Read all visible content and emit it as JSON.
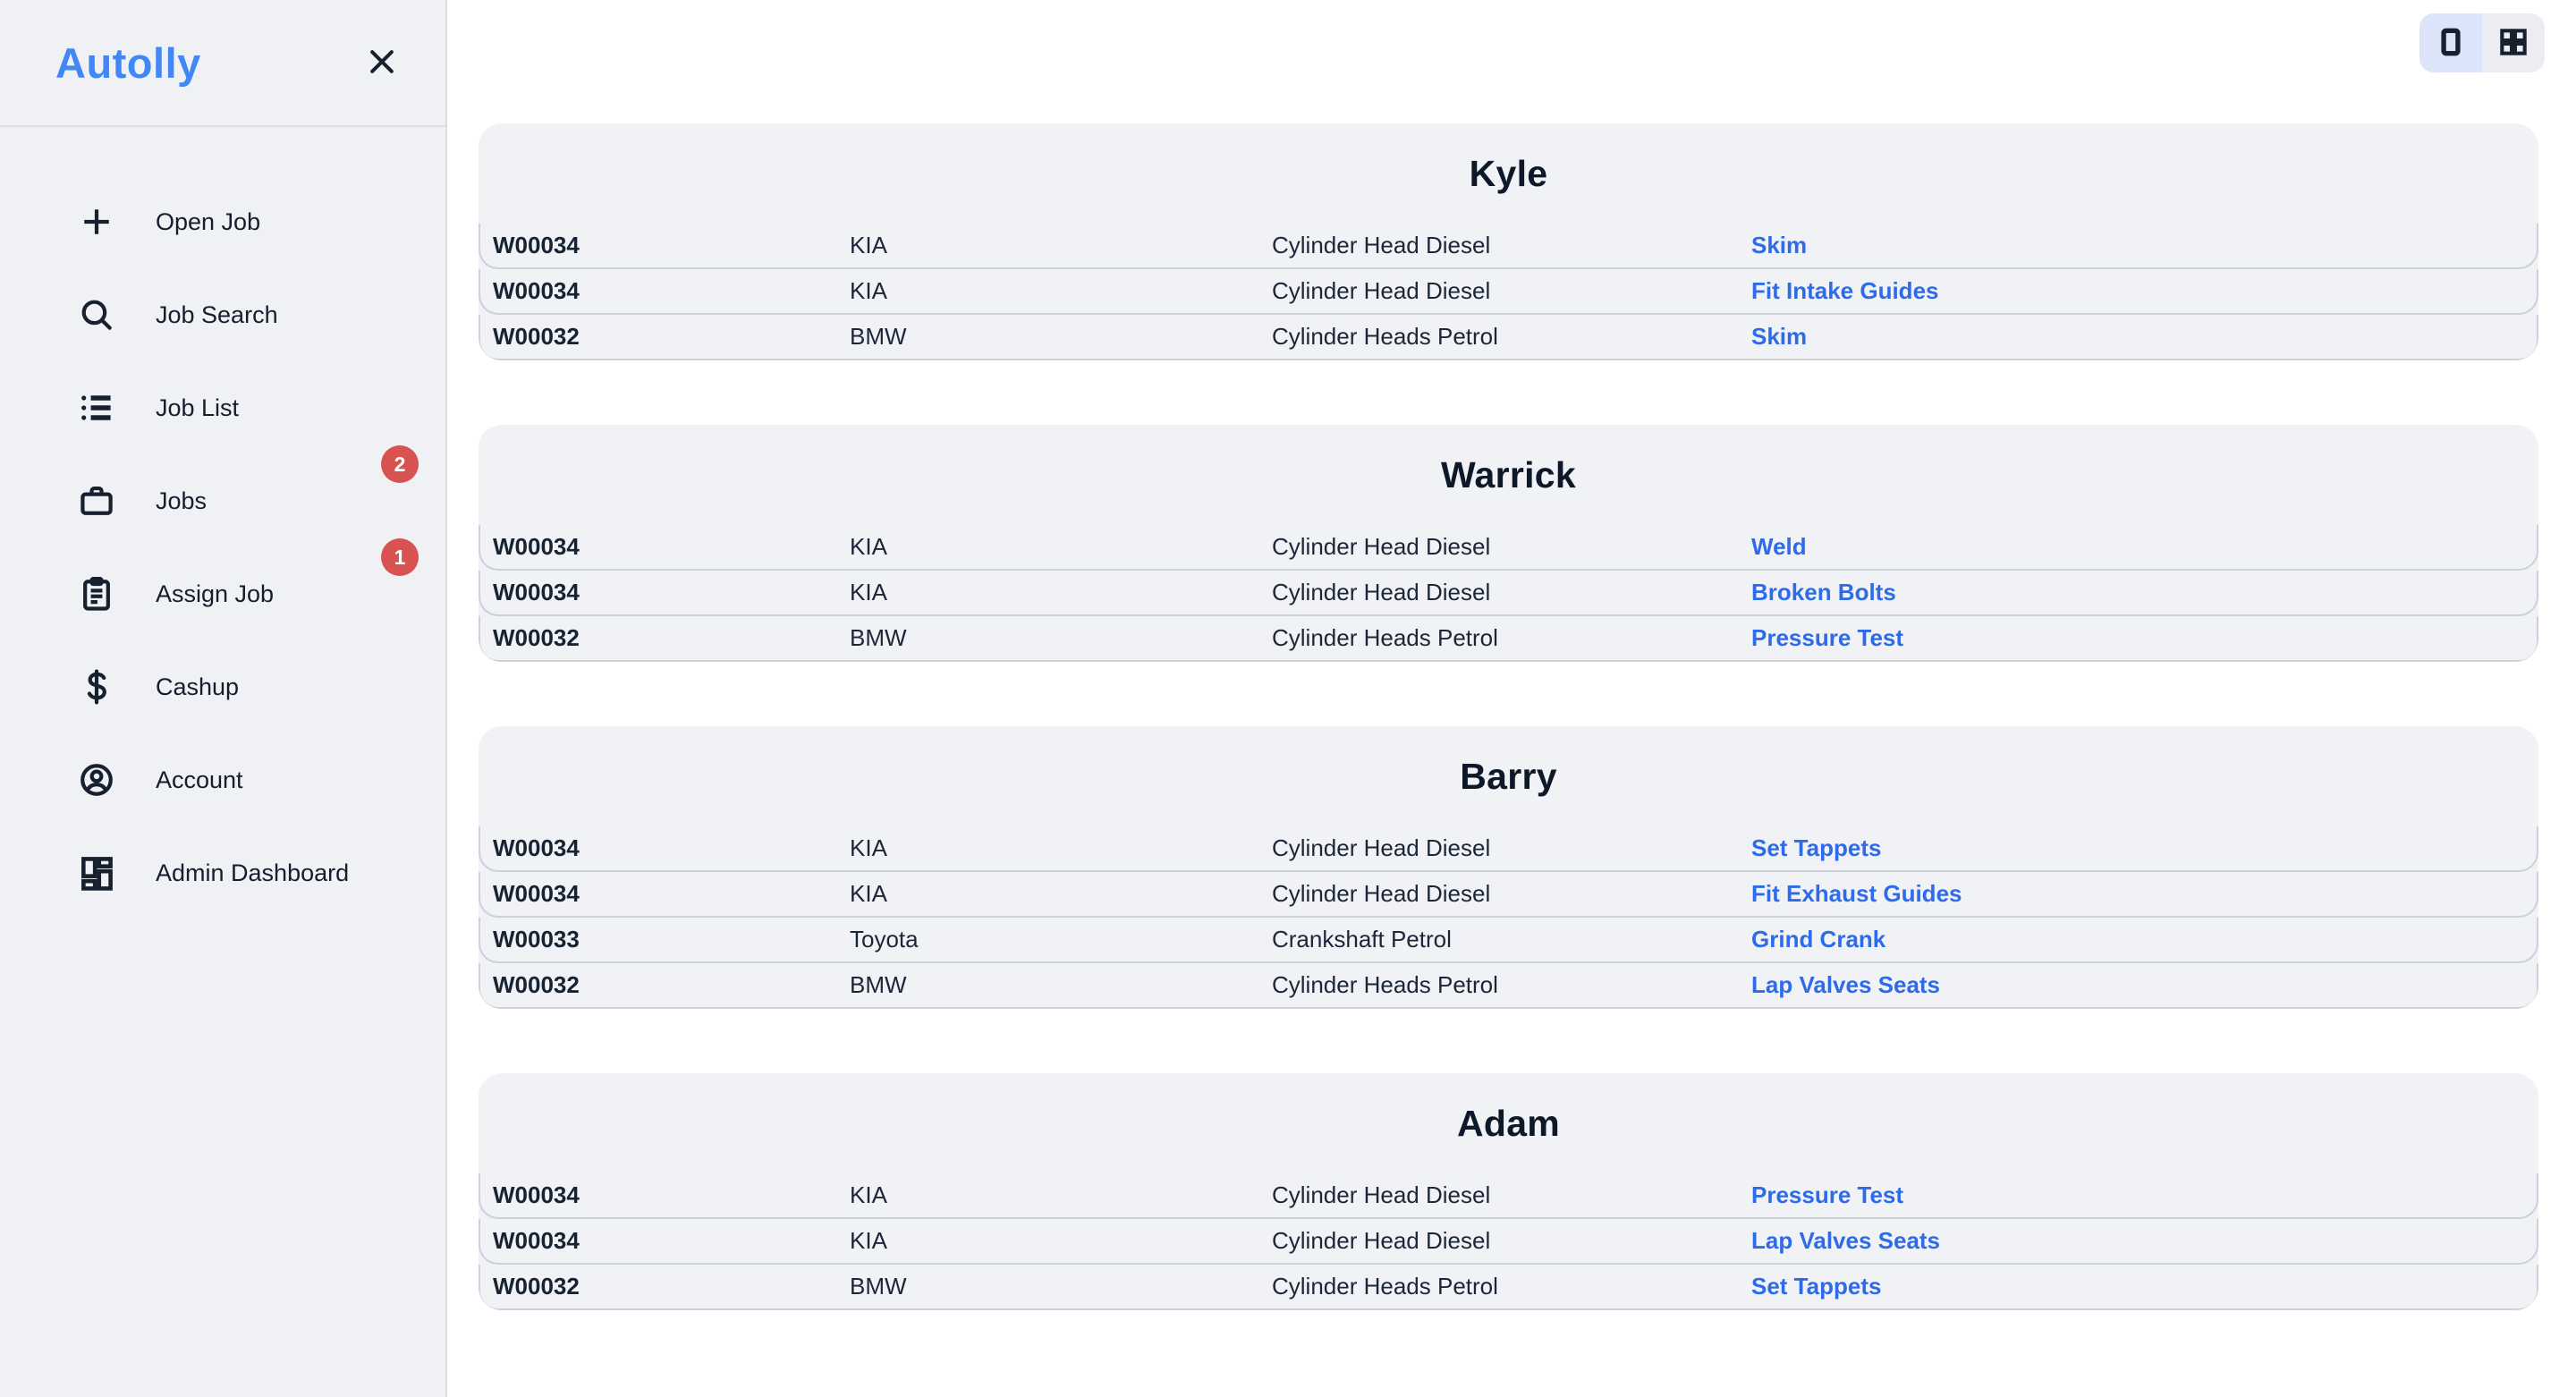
{
  "app": {
    "name": "Autolly"
  },
  "sidebar": {
    "items": [
      {
        "label": "Open Job",
        "icon": "plus"
      },
      {
        "label": "Job Search",
        "icon": "search"
      },
      {
        "label": "Job List",
        "icon": "list"
      },
      {
        "label": "Jobs",
        "icon": "briefcase",
        "badge": "2"
      },
      {
        "label": "Assign Job",
        "icon": "clipboard",
        "badge": "1"
      },
      {
        "label": "Cashup",
        "icon": "dollar"
      },
      {
        "label": "Account",
        "icon": "account"
      },
      {
        "label": "Admin Dashboard",
        "icon": "dashboard"
      }
    ]
  },
  "view_toggle": [
    {
      "name": "single-column-view",
      "icon": "single-view",
      "active": true
    },
    {
      "name": "grid-view",
      "icon": "grid-view",
      "active": false
    }
  ],
  "groups": [
    {
      "name": "Kyle",
      "jobs": [
        {
          "job_no": "W00034",
          "make": "KIA",
          "description": "Cylinder Head Diesel",
          "task": "Skim"
        },
        {
          "job_no": "W00034",
          "make": "KIA",
          "description": "Cylinder Head Diesel",
          "task": "Fit Intake Guides"
        },
        {
          "job_no": "W00032",
          "make": "BMW",
          "description": "Cylinder Heads Petrol",
          "task": "Skim"
        }
      ]
    },
    {
      "name": "Warrick",
      "jobs": [
        {
          "job_no": "W00034",
          "make": "KIA",
          "description": "Cylinder Head Diesel",
          "task": "Weld"
        },
        {
          "job_no": "W00034",
          "make": "KIA",
          "description": "Cylinder Head Diesel",
          "task": "Broken Bolts"
        },
        {
          "job_no": "W00032",
          "make": "BMW",
          "description": "Cylinder Heads Petrol",
          "task": "Pressure Test"
        }
      ]
    },
    {
      "name": "Barry",
      "jobs": [
        {
          "job_no": "W00034",
          "make": "KIA",
          "description": "Cylinder Head Diesel",
          "task": "Set Tappets"
        },
        {
          "job_no": "W00034",
          "make": "KIA",
          "description": "Cylinder Head Diesel",
          "task": "Fit Exhaust Guides"
        },
        {
          "job_no": "W00033",
          "make": "Toyota",
          "description": "Crankshaft Petrol",
          "task": "Grind Crank"
        },
        {
          "job_no": "W00032",
          "make": "BMW",
          "description": "Cylinder Heads Petrol",
          "task": "Lap Valves Seats"
        }
      ]
    },
    {
      "name": "Adam",
      "jobs": [
        {
          "job_no": "W00034",
          "make": "KIA",
          "description": "Cylinder Head Diesel",
          "task": "Pressure Test"
        },
        {
          "job_no": "W00034",
          "make": "KIA",
          "description": "Cylinder Head Diesel",
          "task": "Lap Valves Seats"
        },
        {
          "job_no": "W00032",
          "make": "BMW",
          "description": "Cylinder Heads Petrol",
          "task": "Set Tappets"
        }
      ]
    }
  ],
  "colors": {
    "accent_blue": "#4187f5",
    "link_blue": "#2e6be8",
    "badge_red": "#d95252",
    "sidebar_bg": "#f0f1f4",
    "card_bg": "#f0f2f5",
    "toggle_active_bg": "#dbe4f8",
    "text_dark": "#141e2e"
  }
}
